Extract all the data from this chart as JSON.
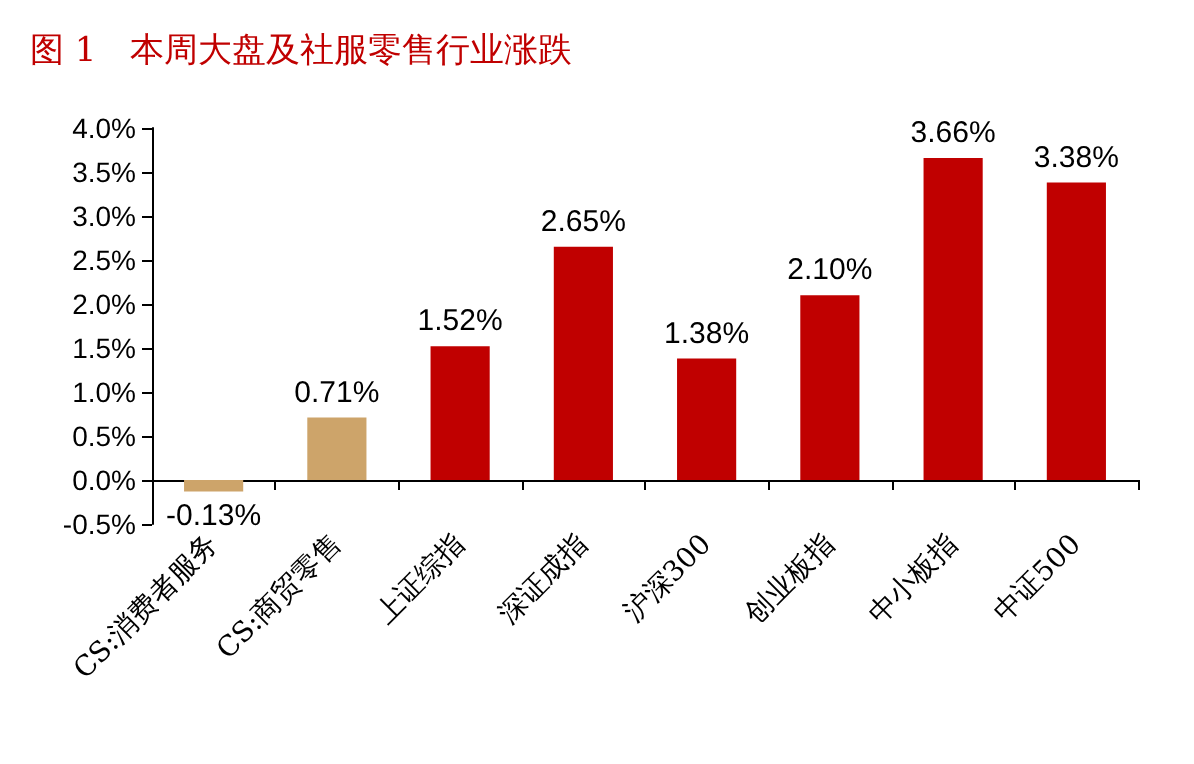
{
  "chart_data": {
    "type": "bar",
    "title": "图 1　本周大盘及社服零售行业涨跌",
    "categories": [
      "CS:消费者服务",
      "CS:商贸零售",
      "上证综指",
      "深证成指",
      "沪深300",
      "创业板指",
      "中小板指",
      "中证500"
    ],
    "values": [
      -0.13,
      0.71,
      1.52,
      2.65,
      1.38,
      2.1,
      3.66,
      3.38
    ],
    "value_labels": [
      "-0.13%",
      "0.71%",
      "1.52%",
      "2.65%",
      "1.38%",
      "2.10%",
      "3.66%",
      "3.38%"
    ],
    "colors": [
      "#cda46a",
      "#cda46a",
      "#c00000",
      "#c00000",
      "#c00000",
      "#c00000",
      "#c00000",
      "#c00000"
    ],
    "ylim": [
      -0.5,
      4.0
    ],
    "yticks": [
      {
        "value": -0.5,
        "label": "-0.5%"
      },
      {
        "value": 0,
        "label": "0.0%"
      },
      {
        "value": 0.5,
        "label": "0.5%"
      },
      {
        "value": 1,
        "label": "1.0%"
      },
      {
        "value": 1.5,
        "label": "1.5%"
      },
      {
        "value": 2,
        "label": "2.0%"
      },
      {
        "value": 2.5,
        "label": "2.5%"
      },
      {
        "value": 3,
        "label": "3.0%"
      },
      {
        "value": 3.5,
        "label": "3.5%"
      },
      {
        "value": 4,
        "label": "4.0%"
      }
    ],
    "grid": false
  }
}
